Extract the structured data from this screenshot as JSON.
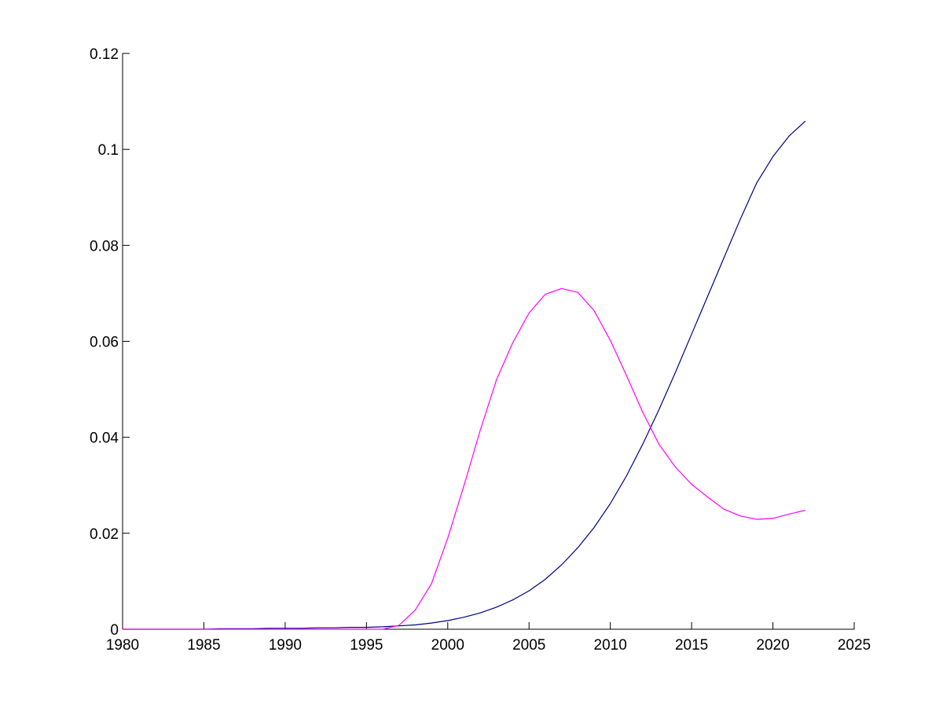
{
  "chart_data": {
    "type": "line",
    "title": "",
    "xlabel": "",
    "ylabel": "",
    "xlim": [
      1980,
      2025
    ],
    "ylim": [
      0,
      0.12
    ],
    "x_ticks": [
      1980,
      1985,
      1990,
      1995,
      2000,
      2005,
      2010,
      2015,
      2020,
      2025
    ],
    "x_tick_labels": [
      "1980",
      "1985",
      "1990",
      "1995",
      "2000",
      "2005",
      "2010",
      "2015",
      "2020",
      "2025"
    ],
    "y_ticks": [
      0,
      0.02,
      0.04,
      0.06,
      0.08,
      0.1,
      0.12
    ],
    "y_tick_labels": [
      "0",
      "0.02",
      "0.04",
      "0.06",
      "0.08",
      "0.1",
      "0.12"
    ],
    "grid": false,
    "legend": "none",
    "series": [
      {
        "color": "#000080",
        "x": [
          1980,
          1981,
          1982,
          1983,
          1984,
          1985,
          1986,
          1987,
          1988,
          1989,
          1990,
          1991,
          1992,
          1993,
          1994,
          1995,
          1996,
          1997,
          1998,
          1999,
          2000,
          2001,
          2002,
          2003,
          2004,
          2005,
          2006,
          2007,
          2008,
          2009,
          2010,
          2011,
          2012,
          2013,
          2014,
          2015,
          2016,
          2017,
          2018,
          2019,
          2020,
          2021,
          2022
        ],
        "values": [
          0.0,
          0.0,
          0.0,
          0.0,
          0.0,
          0.0,
          0.0001,
          0.0001,
          0.0001,
          0.0002,
          0.0002,
          0.0002,
          0.0003,
          0.0003,
          0.0004,
          0.0004,
          0.0005,
          0.0007,
          0.0009,
          0.0013,
          0.0018,
          0.0025,
          0.0034,
          0.0046,
          0.0061,
          0.008,
          0.0104,
          0.0134,
          0.017,
          0.0212,
          0.0262,
          0.032,
          0.0386,
          0.0458,
          0.0535,
          0.0615,
          0.0695,
          0.0775,
          0.0855,
          0.093,
          0.0985,
          0.1028,
          0.1059
        ]
      },
      {
        "color": "#ff00ff",
        "x": [
          1980,
          1985,
          1990,
          1995,
          1996,
          1997,
          1998,
          1999,
          2000,
          2001,
          2002,
          2003,
          2004,
          2005,
          2006,
          2007,
          2008,
          2009,
          2010,
          2011,
          2012,
          2013,
          2014,
          2015,
          2016,
          2017,
          2018,
          2019,
          2020,
          2021,
          2022
        ],
        "values": [
          0.0,
          0.0,
          0.0,
          0.0,
          0.0,
          0.0008,
          0.004,
          0.0095,
          0.019,
          0.03,
          0.0415,
          0.052,
          0.0597,
          0.0659,
          0.0698,
          0.071,
          0.0702,
          0.0664,
          0.0602,
          0.0528,
          0.0452,
          0.0385,
          0.0338,
          0.0302,
          0.0275,
          0.025,
          0.0236,
          0.0229,
          0.0231,
          0.024,
          0.0248
        ]
      }
    ]
  }
}
